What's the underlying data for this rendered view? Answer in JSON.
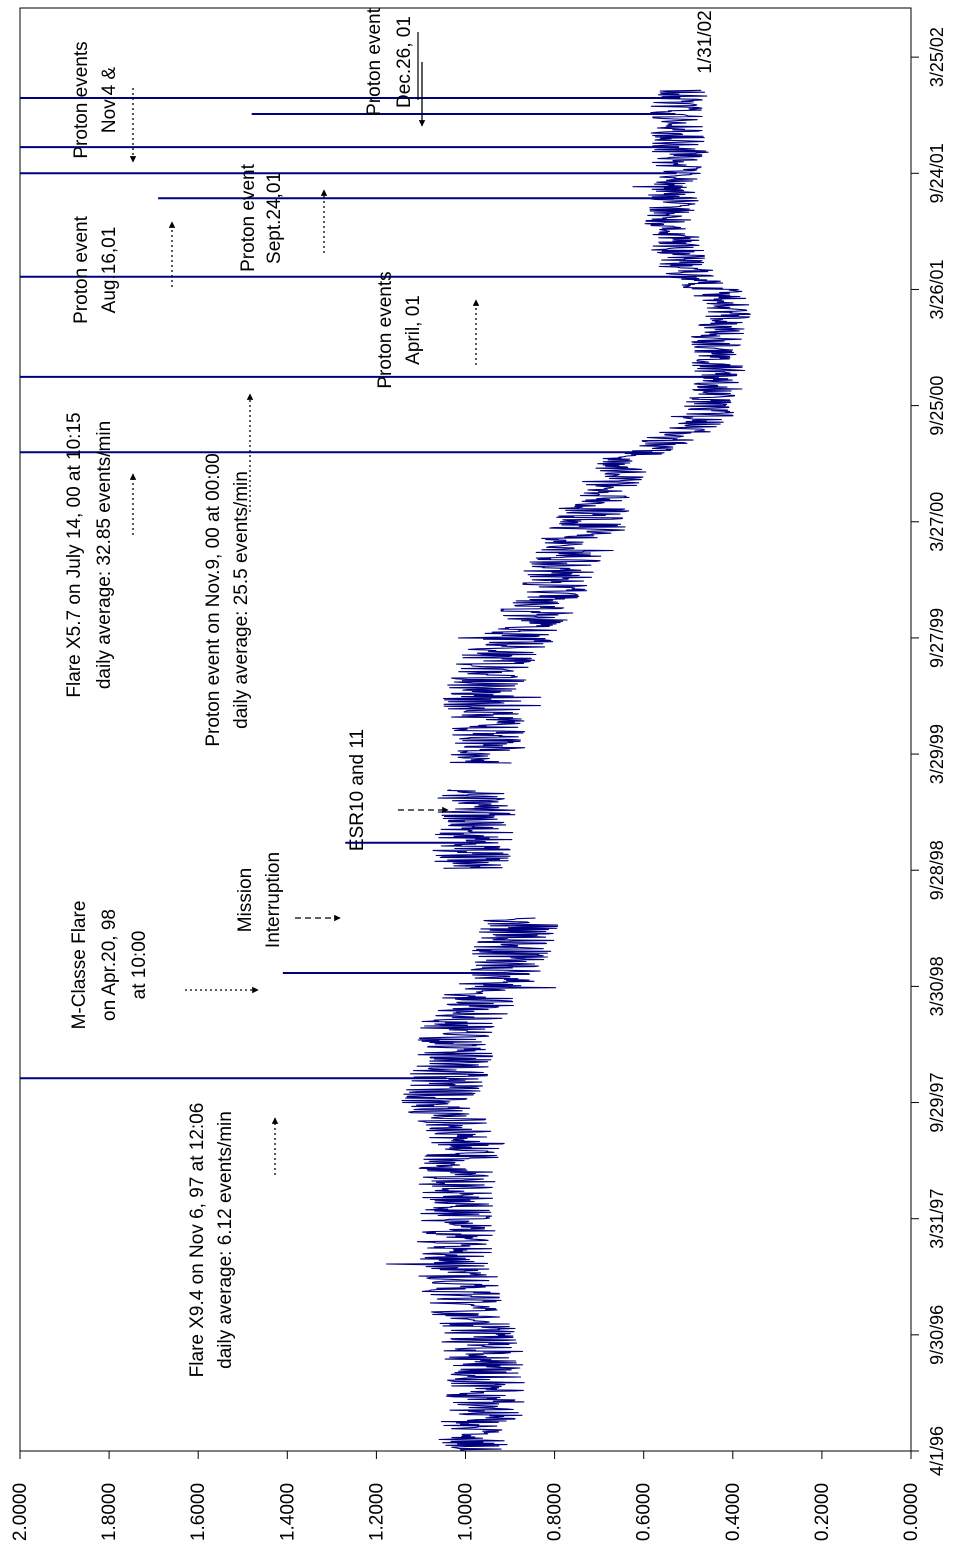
{
  "chart_data": {
    "type": "line",
    "orientation": "rotated-90-clockwise",
    "title": "",
    "xlabel": "",
    "ylabel": "",
    "ylim": [
      0,
      2
    ],
    "y_ticks": [
      "0.0000",
      "0.2000",
      "0.4000",
      "0.6000",
      "0.8000",
      "1.0000",
      "1.2000",
      "1.4000",
      "1.6000",
      "1.8000",
      "2.0000"
    ],
    "x_range": [
      "1996-04-01",
      "2002-06-10"
    ],
    "x_ticks": [
      {
        "label": "4/1/96",
        "date": "1996-04-01"
      },
      {
        "label": "9/30/96",
        "date": "1996-09-30"
      },
      {
        "label": "3/31/97",
        "date": "1997-03-31"
      },
      {
        "label": "9/29/97",
        "date": "1997-09-29"
      },
      {
        "label": "3/30/98",
        "date": "1998-03-30"
      },
      {
        "label": "9/28/98",
        "date": "1998-09-28"
      },
      {
        "label": "3/29/99",
        "date": "1999-03-29"
      },
      {
        "label": "9/27/99",
        "date": "1999-09-27"
      },
      {
        "label": "3/27/00",
        "date": "2000-03-27"
      },
      {
        "label": "9/25/00",
        "date": "2000-09-25"
      },
      {
        "label": "3/26/01",
        "date": "2001-03-26"
      },
      {
        "label": "9/24/01",
        "date": "2001-09-24"
      },
      {
        "label": "3/25/02",
        "date": "2002-03-25"
      }
    ],
    "line_color": "#000080",
    "series": [
      {
        "x": [
          "1996-04-01",
          "1996-06-01",
          "1996-08-01",
          "1996-10-01",
          "1996-12-01",
          "1997-02-01",
          "1997-04-01",
          "1997-06-01",
          "1997-08-01",
          "1997-10-01",
          "1997-12-01",
          "1998-02-01",
          "1998-04-01",
          "1998-06-01",
          "1998-07-15",
          "1998-10-01",
          "1998-12-01",
          "1999-02-01",
          "1999-03-15",
          "1999-05-01",
          "1999-07-01",
          "1999-09-01",
          "1999-11-01",
          "2000-01-01",
          "2000-03-01",
          "2000-05-01",
          "2000-07-01",
          "2000-09-01",
          "2000-11-01",
          "2001-01-01",
          "2001-03-01",
          "2001-05-01",
          "2001-07-01",
          "2001-09-01",
          "2001-11-01",
          "2002-01-01",
          "2002-02-01"
        ],
        "y": [
          0.98,
          0.96,
          0.95,
          0.97,
          1.01,
          1.02,
          1.03,
          1.02,
          1.0,
          1.06,
          1.03,
          1.01,
          0.94,
          0.89,
          0.88,
          0.99,
          0.98,
          0.97,
          0.97,
          0.94,
          0.97,
          0.92,
          0.84,
          0.79,
          0.74,
          0.69,
          0.64,
          0.46,
          0.43,
          0.44,
          0.4,
          0.51,
          0.54,
          0.53,
          0.52,
          0.53,
          0.51
        ]
      }
    ],
    "spikes": [
      {
        "date": "1997-11-06",
        "value": 2.0
      },
      {
        "date": "1998-04-20",
        "value": 1.41
      },
      {
        "date": "1998-11-10",
        "value": 1.27
      },
      {
        "date": "2000-07-14",
        "value": 2.0
      },
      {
        "date": "2000-11-09",
        "value": 2.0
      },
      {
        "date": "2001-04-15",
        "value": 2.0
      },
      {
        "date": "2001-08-16",
        "value": 1.69
      },
      {
        "date": "2001-09-24",
        "value": 2.0
      },
      {
        "date": "2001-11-04",
        "value": 2.0
      },
      {
        "date": "2001-12-26",
        "value": 1.48
      },
      {
        "date": "2002-01-20",
        "value": 2.0
      }
    ],
    "annotations": [
      {
        "id": "flare-1997",
        "lines": [
          "Flare  X9.4 on Nov 6, 97 at 12:06",
          "daily average: 6.12 events/min"
        ]
      },
      {
        "id": "mclass-1998",
        "lines": [
          "M-Classe Flare",
          "on Apr.20, 98",
          "at 10:00"
        ]
      },
      {
        "id": "mission",
        "lines": [
          "Mission",
          "Interruption"
        ]
      },
      {
        "id": "esr",
        "lines": [
          "ESR10 and 11"
        ]
      },
      {
        "id": "proton-nov9",
        "lines": [
          "Proton event  on Nov.9, 00 at 00:00",
          "daily average: 25.5 events/min"
        ]
      },
      {
        "id": "flare-2000",
        "lines": [
          "Flare  X5.7  on July 14, 00 at 10:15",
          "daily average: 32.85 events/min"
        ]
      },
      {
        "id": "proton-april",
        "lines": [
          "Proton events",
          "April, 01"
        ]
      },
      {
        "id": "proton-aug",
        "lines": [
          "Proton event",
          "Aug.16,01"
        ]
      },
      {
        "id": "proton-sept",
        "lines": [
          "Proton event",
          "Sept.24,01"
        ]
      },
      {
        "id": "proton-nov",
        "lines": [
          "Proton events",
          "Nov.4 &"
        ]
      },
      {
        "id": "proton-dec",
        "lines": [
          "Proton event",
          "Dec.26, 01"
        ]
      },
      {
        "id": "date-label",
        "lines": [
          "1/31/02"
        ]
      }
    ]
  }
}
